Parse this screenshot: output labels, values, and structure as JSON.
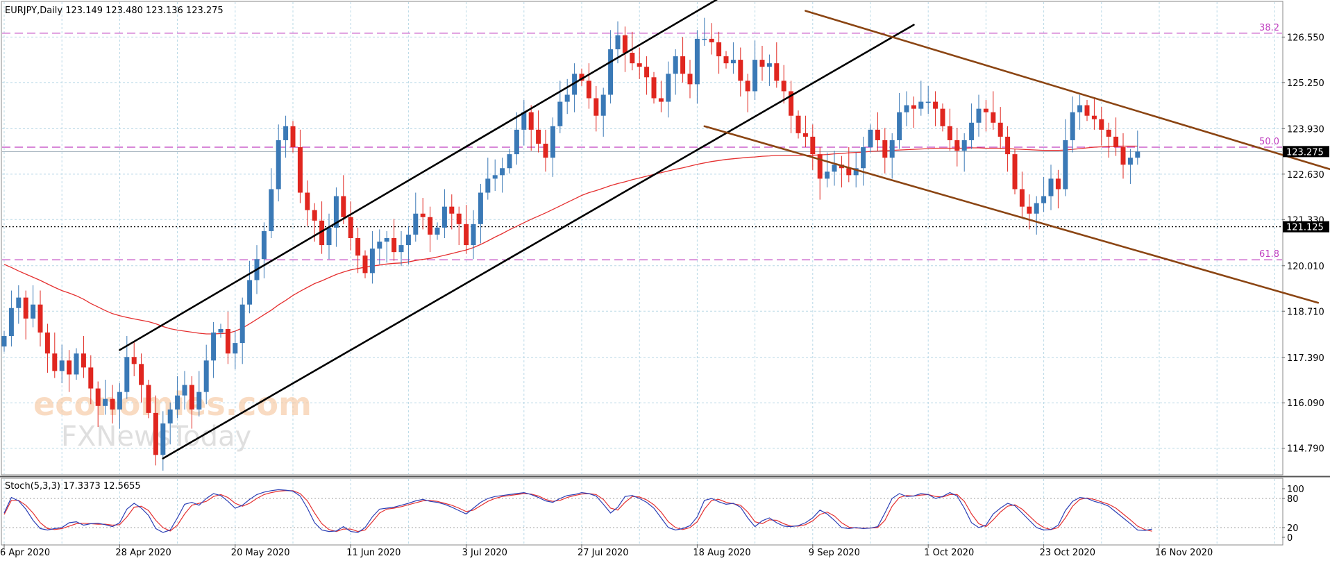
{
  "header": {
    "symbol_line": "EURJPY,Daily  123.149 123.480 123.136 123.275",
    "stoch_line": "Stoch(5,3,3) 17.3373 12.5655"
  },
  "watermark": {
    "line1": "economies.com",
    "line2": "FXNewsToday"
  },
  "colors": {
    "bull": "#3a79b6",
    "bear": "#e0261f",
    "ma": "#e53030",
    "fib": "#c040c0",
    "grid": "#b8d8e6",
    "channel_up": "#000000",
    "channel_down": "#8b4513",
    "stoch_main": "#2b3fb5",
    "stoch_signal": "#e53030"
  },
  "chart_data": [
    {
      "type": "candlestick",
      "title": "EURJPY,Daily",
      "ohlc_readout": {
        "open": 123.149,
        "high": 123.48,
        "low": 123.136,
        "close": 123.275
      },
      "x_axis": {
        "labels": [
          "6 Apr 2020",
          "28 Apr 2020",
          "20 May 2020",
          "11 Jun 2020",
          "3 Jul 2020",
          "27 Jul 2020",
          "18 Aug 2020",
          "9 Sep 2020",
          "1 Oct 2020",
          "23 Oct 2020",
          "16 Nov 2020"
        ],
        "label_bar_index": [
          0,
          16,
          32,
          48,
          64,
          80,
          96,
          112,
          128,
          144,
          160
        ]
      },
      "y_axis": {
        "ticks": [
          "126.550",
          "125.250",
          "123.930",
          "122.630",
          "121.330",
          "120.010",
          "118.710",
          "117.390",
          "116.090",
          "114.790"
        ],
        "range": [
          114.05,
          127.55
        ]
      },
      "price_marker": {
        "value": 123.275,
        "label": "123.275"
      },
      "dotted_level": {
        "value": 121.125,
        "label": "121.125"
      },
      "fibonacci": [
        {
          "label": "38.2",
          "value": 126.66
        },
        {
          "label": "50.0",
          "value": 123.4
        },
        {
          "label": "61.8",
          "value": 120.18
        }
      ],
      "series": [
        {
          "name": "",
          "role": "candles",
          "close": [
            118.0,
            118.8,
            119.1,
            118.5,
            118.9,
            118.1,
            117.5,
            117.0,
            117.3,
            116.9,
            117.5,
            117.1,
            116.5,
            116.0,
            116.2,
            115.9,
            116.4,
            117.4,
            117.2,
            116.6,
            115.8,
            114.6,
            115.5,
            115.9,
            116.3,
            116.6,
            115.9,
            116.4,
            117.3,
            118.1,
            118.2,
            117.5,
            117.8,
            118.9,
            119.6,
            120.2,
            121.0,
            122.2,
            123.6,
            124.0,
            123.4,
            122.1,
            121.6,
            121.3,
            120.6,
            121.1,
            122.0,
            121.4,
            120.8,
            120.3,
            119.8,
            120.5,
            120.7,
            120.8,
            120.4,
            120.6,
            120.9,
            121.5,
            121.4,
            120.9,
            121.1,
            121.7,
            121.5,
            121.2,
            120.6,
            121.2,
            122.1,
            122.5,
            122.6,
            122.8,
            123.2,
            123.9,
            124.4,
            123.9,
            123.5,
            123.1,
            124.0,
            124.7,
            124.9,
            125.5,
            125.3,
            124.8,
            124.3,
            124.9,
            126.2,
            126.6,
            126.1,
            125.8,
            125.7,
            125.4,
            124.8,
            124.7,
            125.5,
            126.0,
            125.5,
            125.2,
            126.5,
            126.5,
            126.4,
            126.0,
            125.8,
            125.9,
            125.3,
            125.0,
            125.9,
            125.7,
            125.8,
            125.3,
            125.0,
            124.3,
            123.8,
            123.7,
            123.2,
            122.5,
            122.7,
            122.9,
            122.8,
            122.6,
            122.8,
            123.4,
            123.9,
            123.6,
            123.1,
            123.6,
            124.4,
            124.6,
            124.5,
            124.7,
            124.7,
            124.5,
            124.0,
            123.6,
            123.3,
            123.6,
            124.1,
            124.5,
            124.4,
            124.1,
            123.7,
            123.2,
            122.2,
            121.7,
            121.5,
            121.8,
            122.0,
            122.5,
            122.2,
            123.6,
            124.4,
            124.6,
            124.3,
            124.2,
            123.9,
            123.7,
            123.4,
            122.9,
            123.1,
            123.275
          ]
        },
        {
          "name": "",
          "role": "moving-average",
          "values": [
            120.05,
            119.96,
            119.86,
            119.77,
            119.68,
            119.59,
            119.49,
            119.39,
            119.3,
            119.23,
            119.15,
            119.05,
            118.93,
            118.83,
            118.73,
            118.64,
            118.58,
            118.53,
            118.49,
            118.45,
            118.41,
            118.35,
            118.27,
            118.21,
            118.17,
            118.14,
            118.11,
            118.08,
            118.06,
            118.06,
            118.07,
            118.08,
            118.14,
            118.23,
            118.35,
            118.48,
            118.61,
            118.74,
            118.89,
            119.02,
            119.16,
            119.28,
            119.39,
            119.5,
            119.58,
            119.67,
            119.76,
            119.83,
            119.89,
            119.93,
            119.97,
            120.0,
            120.03,
            120.06,
            120.08,
            120.09,
            120.12,
            120.16,
            120.19,
            120.22,
            120.26,
            120.31,
            120.36,
            120.41,
            120.46,
            120.53,
            120.62,
            120.72,
            120.83,
            120.93,
            121.04,
            121.14,
            121.24,
            121.34,
            121.43,
            121.52,
            121.62,
            121.72,
            121.82,
            121.92,
            122.02,
            122.1,
            122.16,
            122.23,
            122.3,
            122.36,
            122.41,
            122.47,
            122.52,
            122.57,
            122.62,
            122.67,
            122.72,
            122.77,
            122.81,
            122.86,
            122.91,
            122.95,
            122.99,
            123.02,
            123.05,
            123.07,
            123.09,
            123.11,
            123.12,
            123.14,
            123.15,
            123.17,
            123.17,
            123.17,
            123.17,
            123.17,
            123.17,
            123.18,
            123.19,
            123.21,
            123.22,
            123.24,
            123.25,
            123.26,
            123.28,
            123.29,
            123.3,
            123.31,
            123.32,
            123.33,
            123.34,
            123.35,
            123.36,
            123.37,
            123.37,
            123.37,
            123.37,
            123.37,
            123.38,
            123.38,
            123.37,
            123.37,
            123.37,
            123.36,
            123.35,
            123.34,
            123.33,
            123.32,
            123.31,
            123.31,
            123.31,
            123.32,
            123.34,
            123.36,
            123.38,
            123.4,
            123.41,
            123.42,
            123.43,
            123.43,
            123.43,
            123.43
          ]
        }
      ],
      "trendlines": [
        {
          "name": "rising-channel-upper",
          "from": {
            "bar": 16,
            "price": 117.6
          },
          "to": {
            "bar": 101,
            "price": 127.9
          }
        },
        {
          "name": "rising-channel-lower",
          "from": {
            "bar": 22,
            "price": 114.5
          },
          "to": {
            "bar": 126,
            "price": 126.9
          }
        },
        {
          "name": "falling-channel-upper",
          "from": {
            "bar": 111,
            "price": 127.3
          },
          "to": {
            "bar": 196,
            "price": 122.0
          }
        },
        {
          "name": "falling-channel-lower",
          "from": {
            "bar": 97,
            "price": 124.0
          },
          "to": {
            "bar": 182,
            "price": 118.95
          }
        }
      ]
    },
    {
      "type": "line",
      "title": "Stoch(5,3,3)",
      "readout": {
        "main": 17.3373,
        "signal": 12.5655
      },
      "y_axis": {
        "ticks": [
          "100",
          "80",
          "20",
          "0"
        ],
        "range": [
          0,
          100
        ]
      },
      "levels": [
        80,
        20
      ],
      "series": [
        {
          "name": "",
          "role": "main",
          "values": [
            50,
            82,
            75,
            58,
            35,
            18,
            15,
            18,
            20,
            30,
            32,
            25,
            28,
            29,
            26,
            22,
            30,
            58,
            70,
            60,
            45,
            18,
            10,
            15,
            40,
            68,
            72,
            66,
            80,
            90,
            86,
            74,
            60,
            66,
            78,
            88,
            93,
            96,
            98,
            97,
            95,
            85,
            60,
            30,
            15,
            12,
            13,
            22,
            12,
            10,
            20,
            42,
            58,
            60,
            62,
            66,
            70,
            75,
            78,
            74,
            72,
            68,
            62,
            55,
            48,
            60,
            72,
            80,
            84,
            86,
            88,
            90,
            92,
            88,
            82,
            75,
            72,
            80,
            86,
            88,
            92,
            90,
            85,
            68,
            50,
            62,
            84,
            86,
            80,
            72,
            60,
            40,
            20,
            15,
            18,
            24,
            42,
            76,
            80,
            73,
            68,
            70,
            62,
            40,
            22,
            34,
            40,
            30,
            23,
            22,
            24,
            30,
            40,
            56,
            48,
            35,
            20,
            18,
            20,
            18,
            19,
            22,
            50,
            80,
            90,
            84,
            85,
            90,
            88,
            80,
            84,
            92,
            85,
            60,
            30,
            20,
            25,
            48,
            60,
            70,
            65,
            50,
            35,
            20,
            15,
            16,
            25,
            55,
            74,
            82,
            80,
            74,
            70,
            64,
            52,
            40,
            28,
            15,
            14,
            17
          ]
        },
        {
          "name": "",
          "role": "signal",
          "values": [
            47,
            76,
            76,
            66,
            50,
            30,
            18,
            16,
            18,
            23,
            28,
            29,
            28,
            27,
            27,
            25,
            26,
            42,
            62,
            64,
            55,
            35,
            20,
            13,
            25,
            48,
            66,
            70,
            74,
            84,
            88,
            82,
            70,
            64,
            70,
            80,
            88,
            92,
            95,
            96,
            96,
            90,
            75,
            50,
            28,
            16,
            12,
            17,
            17,
            12,
            15,
            32,
            50,
            58,
            60,
            63,
            67,
            71,
            75,
            76,
            74,
            70,
            66,
            60,
            53,
            56,
            65,
            74,
            80,
            84,
            86,
            88,
            90,
            89,
            85,
            78,
            74,
            76,
            82,
            86,
            89,
            90,
            88,
            78,
            60,
            56,
            72,
            84,
            83,
            77,
            67,
            52,
            32,
            20,
            16,
            20,
            32,
            58,
            76,
            78,
            72,
            69,
            66,
            52,
            32,
            28,
            36,
            35,
            28,
            23,
            23,
            26,
            34,
            47,
            52,
            44,
            30,
            21,
            19,
            19,
            19,
            20,
            35,
            64,
            82,
            86,
            85,
            87,
            88,
            84,
            83,
            88,
            88,
            74,
            48,
            28,
            22,
            36,
            52,
            64,
            67,
            58,
            44,
            30,
            20,
            16,
            20,
            40,
            64,
            78,
            81,
            78,
            73,
            68,
            60,
            48,
            36,
            23,
            16,
            12.5655
          ]
        }
      ]
    }
  ]
}
